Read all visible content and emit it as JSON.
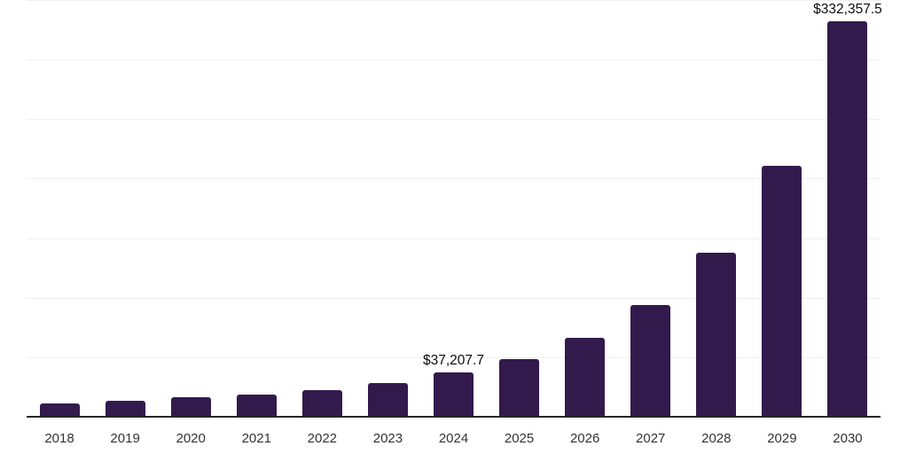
{
  "chart_data": {
    "type": "bar",
    "title": "",
    "xlabel": "",
    "ylabel": "",
    "categories": [
      "2018",
      "2019",
      "2020",
      "2021",
      "2022",
      "2023",
      "2024",
      "2025",
      "2026",
      "2027",
      "2028",
      "2029",
      "2030"
    ],
    "values": [
      11000,
      13400,
      16400,
      18700,
      22400,
      28300,
      37207.7,
      48500,
      66400,
      94000,
      138000,
      210400,
      332357.5
    ],
    "ylim": [
      0,
      350000
    ],
    "gridline_step": 50000,
    "grid": true,
    "legend": false,
    "y_tick_labels_shown": false,
    "data_labels": [
      {
        "category": "2024",
        "text": "$37,207.7"
      },
      {
        "category": "2030",
        "text": "$332,357.5"
      }
    ],
    "colors": {
      "bar": "#331a4d",
      "axis_line": "#262626",
      "tick_label": "#333333",
      "data_label": "#0d0d0d",
      "gridline": "#f0f0f0",
      "background": "#ffffff"
    }
  }
}
